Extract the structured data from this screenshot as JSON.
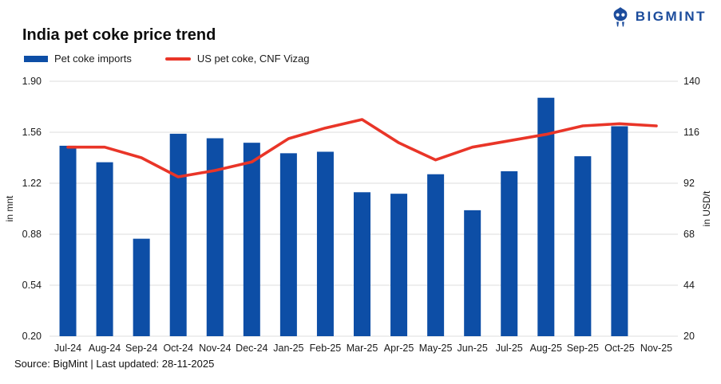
{
  "header": {
    "brand": "BIGMINT",
    "title": "India pet coke price trend"
  },
  "legend": {
    "bar_label": "Pet coke imports",
    "line_label": "US pet coke, CNF Vizag"
  },
  "footer": {
    "source": "Source: BigMint | Last updated: 28-11-2025"
  },
  "colors": {
    "bar": "#0d4ea6",
    "line": "#e93528",
    "logo": "#1c4c9c",
    "grid": "#e3e3e3",
    "text": "#1a1a1a"
  },
  "chart_data": {
    "type": "bar",
    "title": "India pet coke price trend",
    "categories": [
      "Jul-24",
      "Aug-24",
      "Sep-24",
      "Oct-24",
      "Nov-24",
      "Dec-24",
      "Jan-25",
      "Feb-25",
      "Mar-25",
      "Apr-25",
      "May-25",
      "Jun-25",
      "Jul-25",
      "Aug-25",
      "Sep-25",
      "Oct-25",
      "Nov-25"
    ],
    "series": [
      {
        "name": "Pet coke imports",
        "type": "bar",
        "axis": "left",
        "color": "#0d4ea6",
        "values": [
          1.47,
          1.36,
          0.85,
          1.55,
          1.52,
          1.49,
          1.42,
          1.43,
          1.16,
          1.15,
          1.28,
          1.04,
          1.3,
          1.79,
          1.4,
          1.6,
          null
        ]
      },
      {
        "name": "US pet coke, CNF Vizag",
        "type": "line",
        "axis": "right",
        "color": "#e93528",
        "values": [
          109,
          109,
          104,
          95,
          98,
          102,
          113,
          118,
          122,
          111,
          103,
          109,
          112,
          115,
          119,
          120,
          119
        ]
      }
    ],
    "left_axis": {
      "label": "in mnt",
      "min": 0.2,
      "max": 1.9,
      "tick_labels": [
        "1.90",
        "1.56",
        "1.22",
        "0.88",
        "0.54",
        "0.20"
      ]
    },
    "right_axis": {
      "label": "in USD/t",
      "min": 20,
      "max": 140,
      "tick_labels": [
        "140",
        "116",
        "92",
        "68",
        "44",
        "20"
      ]
    },
    "grid": true,
    "legend_position": "top-left"
  }
}
